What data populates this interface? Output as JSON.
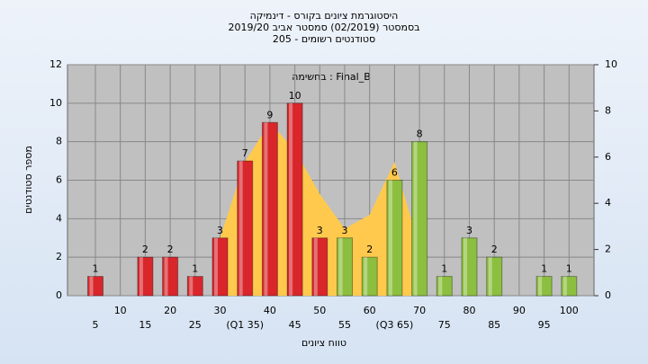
{
  "chart_data": {
    "type": "bar",
    "title": "היסטוגרמת ציונים בקורס - דינמיקה",
    "subtitle": "בסמסטר (02/2019) סמסטר אביב 2019/20",
    "subtitle2": "סטודנטים רשומים - 205",
    "annotation": "בחשימה : Final_B",
    "x_label": "טווח ציונים",
    "y_label": "מספר סטודנטים",
    "categories": [
      "5",
      "10",
      "15",
      "20",
      "25",
      "30",
      "(Q1 35)",
      "40",
      "45",
      "50",
      "55",
      "60",
      "(Q3 65)",
      "70",
      "75",
      "80",
      "85",
      "90",
      "95",
      "100"
    ],
    "values": [
      1,
      0,
      2,
      2,
      1,
      3,
      7,
      9,
      10,
      3,
      3,
      2,
      6,
      8,
      1,
      3,
      2,
      0,
      1,
      1
    ],
    "bar_colors": [
      "#d8262b",
      "#d8262b",
      "#d8262b",
      "#d8262b",
      "#d8262b",
      "#d8262b",
      "#d8262b",
      "#d8262b",
      "#d8262b",
      "#d8262b",
      "#8cbf3f",
      "#8cbf3f",
      "#8cbf3f",
      "#8cbf3f",
      "#8cbf3f",
      "#8cbf3f",
      "#8cbf3f",
      "#8cbf3f",
      "#8cbf3f",
      "#8cbf3f"
    ],
    "area": {
      "axis": "y2",
      "color": "#ffc94d",
      "values": [
        null,
        null,
        null,
        null,
        null,
        2.5,
        5.8,
        7.5,
        6.3,
        4.4,
        2.9,
        3.5,
        5.8,
        2.1,
        null,
        null,
        null,
        null,
        null,
        null
      ]
    },
    "ylim": [
      0,
      12
    ],
    "yticks": [
      0,
      2,
      4,
      6,
      8,
      10,
      12
    ],
    "y2lim": [
      0,
      10
    ],
    "y2ticks": [
      0,
      2,
      4,
      6,
      8,
      10
    ],
    "grid": true
  }
}
